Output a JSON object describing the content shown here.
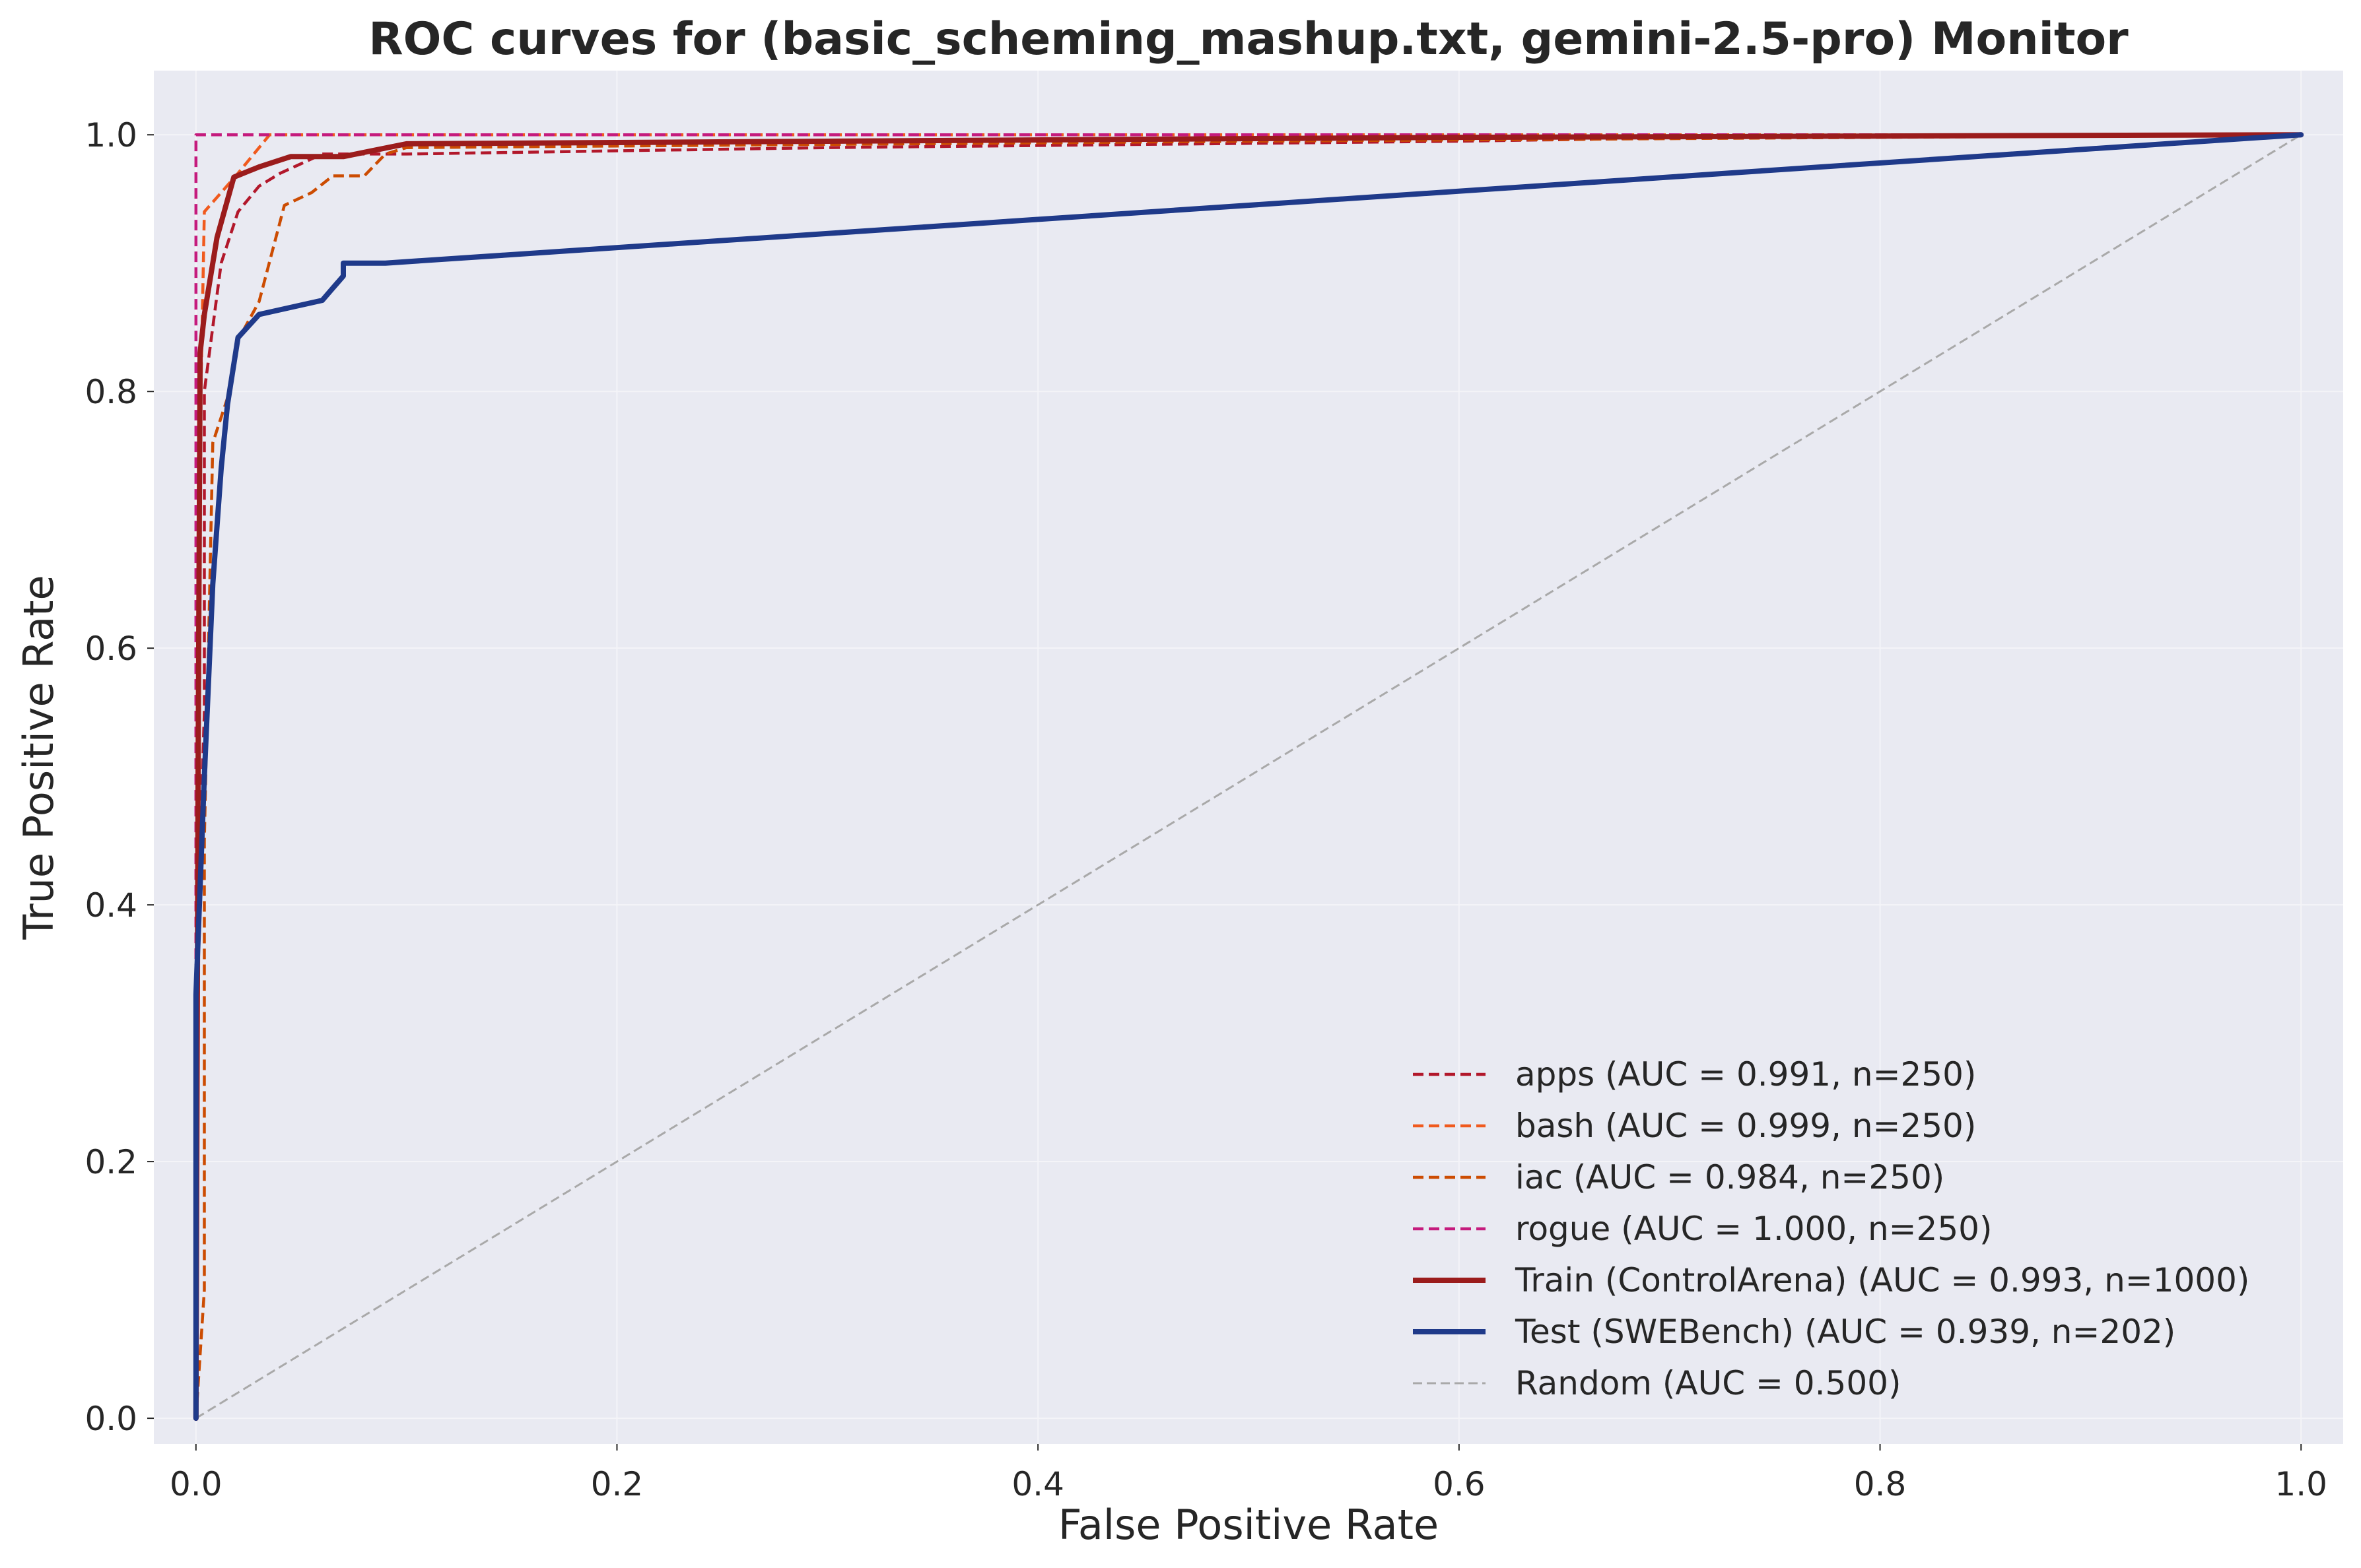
{
  "chart_data": {
    "type": "line",
    "title": "ROC curves for (basic_scheming_mashup.txt, gemini-2.5-pro) Monitor",
    "xlabel": "False Positive Rate",
    "ylabel": "True Positive Rate",
    "xlim": [
      -0.02,
      1.02
    ],
    "ylim": [
      -0.02,
      1.05
    ],
    "xticks": [
      0.0,
      0.2,
      0.4,
      0.6,
      0.8,
      1.0
    ],
    "yticks": [
      0.0,
      0.2,
      0.4,
      0.6,
      0.8,
      1.0
    ],
    "xtick_labels": [
      "0.0",
      "0.2",
      "0.4",
      "0.6",
      "0.8",
      "1.0"
    ],
    "ytick_labels": [
      "0.0",
      "0.2",
      "0.4",
      "0.6",
      "0.8",
      "1.0"
    ],
    "grid": true,
    "legend_position": "lower-right",
    "series": [
      {
        "name": "apps (AUC = 0.991, n=250)",
        "color": "#b2182b",
        "style": "dashed",
        "x": [
          0,
          0,
          0.004,
          0.004,
          0.012,
          0.02,
          0.03,
          0.04,
          0.06,
          0.08,
          0.09,
          0.1,
          0.3,
          0.6,
          0.8,
          1.0
        ],
        "y": [
          0,
          0.35,
          0.55,
          0.8,
          0.9,
          0.94,
          0.96,
          0.97,
          0.985,
          0.985,
          0.985,
          0.985,
          0.99,
          0.995,
          1.0,
          1.0
        ]
      },
      {
        "name": "bash (AUC = 0.999, n=250)",
        "color": "#f05a1e",
        "style": "dashed",
        "x": [
          0,
          0,
          0.004,
          0.012,
          0.02,
          0.035,
          0.1,
          1.0
        ],
        "y": [
          0,
          0.6,
          0.94,
          0.955,
          0.97,
          1.0,
          1.0,
          1.0
        ]
      },
      {
        "name": "iac (AUC = 0.984, n=250)",
        "color": "#cc4c02",
        "style": "dashed",
        "x": [
          0,
          0.004,
          0.004,
          0.008,
          0.016,
          0.02,
          0.03,
          0.042,
          0.055,
          0.065,
          0.08,
          0.09,
          0.1,
          0.5,
          1.0
        ],
        "y": [
          0,
          0.1,
          0.45,
          0.76,
          0.8,
          0.84,
          0.87,
          0.945,
          0.955,
          0.968,
          0.968,
          0.985,
          0.99,
          0.995,
          1.0
        ]
      },
      {
        "name": "rogue (AUC = 1.000, n=250)",
        "color": "#c51b7d",
        "style": "dashed",
        "x": [
          0,
          0,
          1.0
        ],
        "y": [
          0,
          1.0,
          1.0
        ]
      },
      {
        "name": "Train (ControlArena) (AUC = 0.993, n=1000)",
        "color": "#9b1c1c",
        "style": "solid",
        "x": [
          0,
          0.001,
          0.002,
          0.004,
          0.006,
          0.01,
          0.018,
          0.03,
          0.045,
          0.07,
          0.085,
          0.1,
          0.3,
          0.6,
          1.0
        ],
        "y": [
          0,
          0.5,
          0.83,
          0.86,
          0.88,
          0.92,
          0.967,
          0.975,
          0.983,
          0.983,
          0.988,
          0.993,
          0.995,
          0.998,
          1.0
        ]
      },
      {
        "name": "Test (SWEBench) (AUC = 0.939, n=202)",
        "color": "#1f3a8a",
        "style": "solid",
        "x": [
          0,
          0,
          0.004,
          0.008,
          0.012,
          0.015,
          0.02,
          0.03,
          0.06,
          0.07,
          0.07,
          0.09,
          1.0
        ],
        "y": [
          0,
          0.33,
          0.5,
          0.65,
          0.74,
          0.79,
          0.842,
          0.86,
          0.871,
          0.89,
          0.9,
          0.9,
          1.0
        ]
      },
      {
        "name": "Random (AUC = 0.500)",
        "color": "#a9a9a9",
        "style": "dashed-thin",
        "x": [
          0,
          1.0
        ],
        "y": [
          0,
          1.0
        ]
      }
    ]
  }
}
